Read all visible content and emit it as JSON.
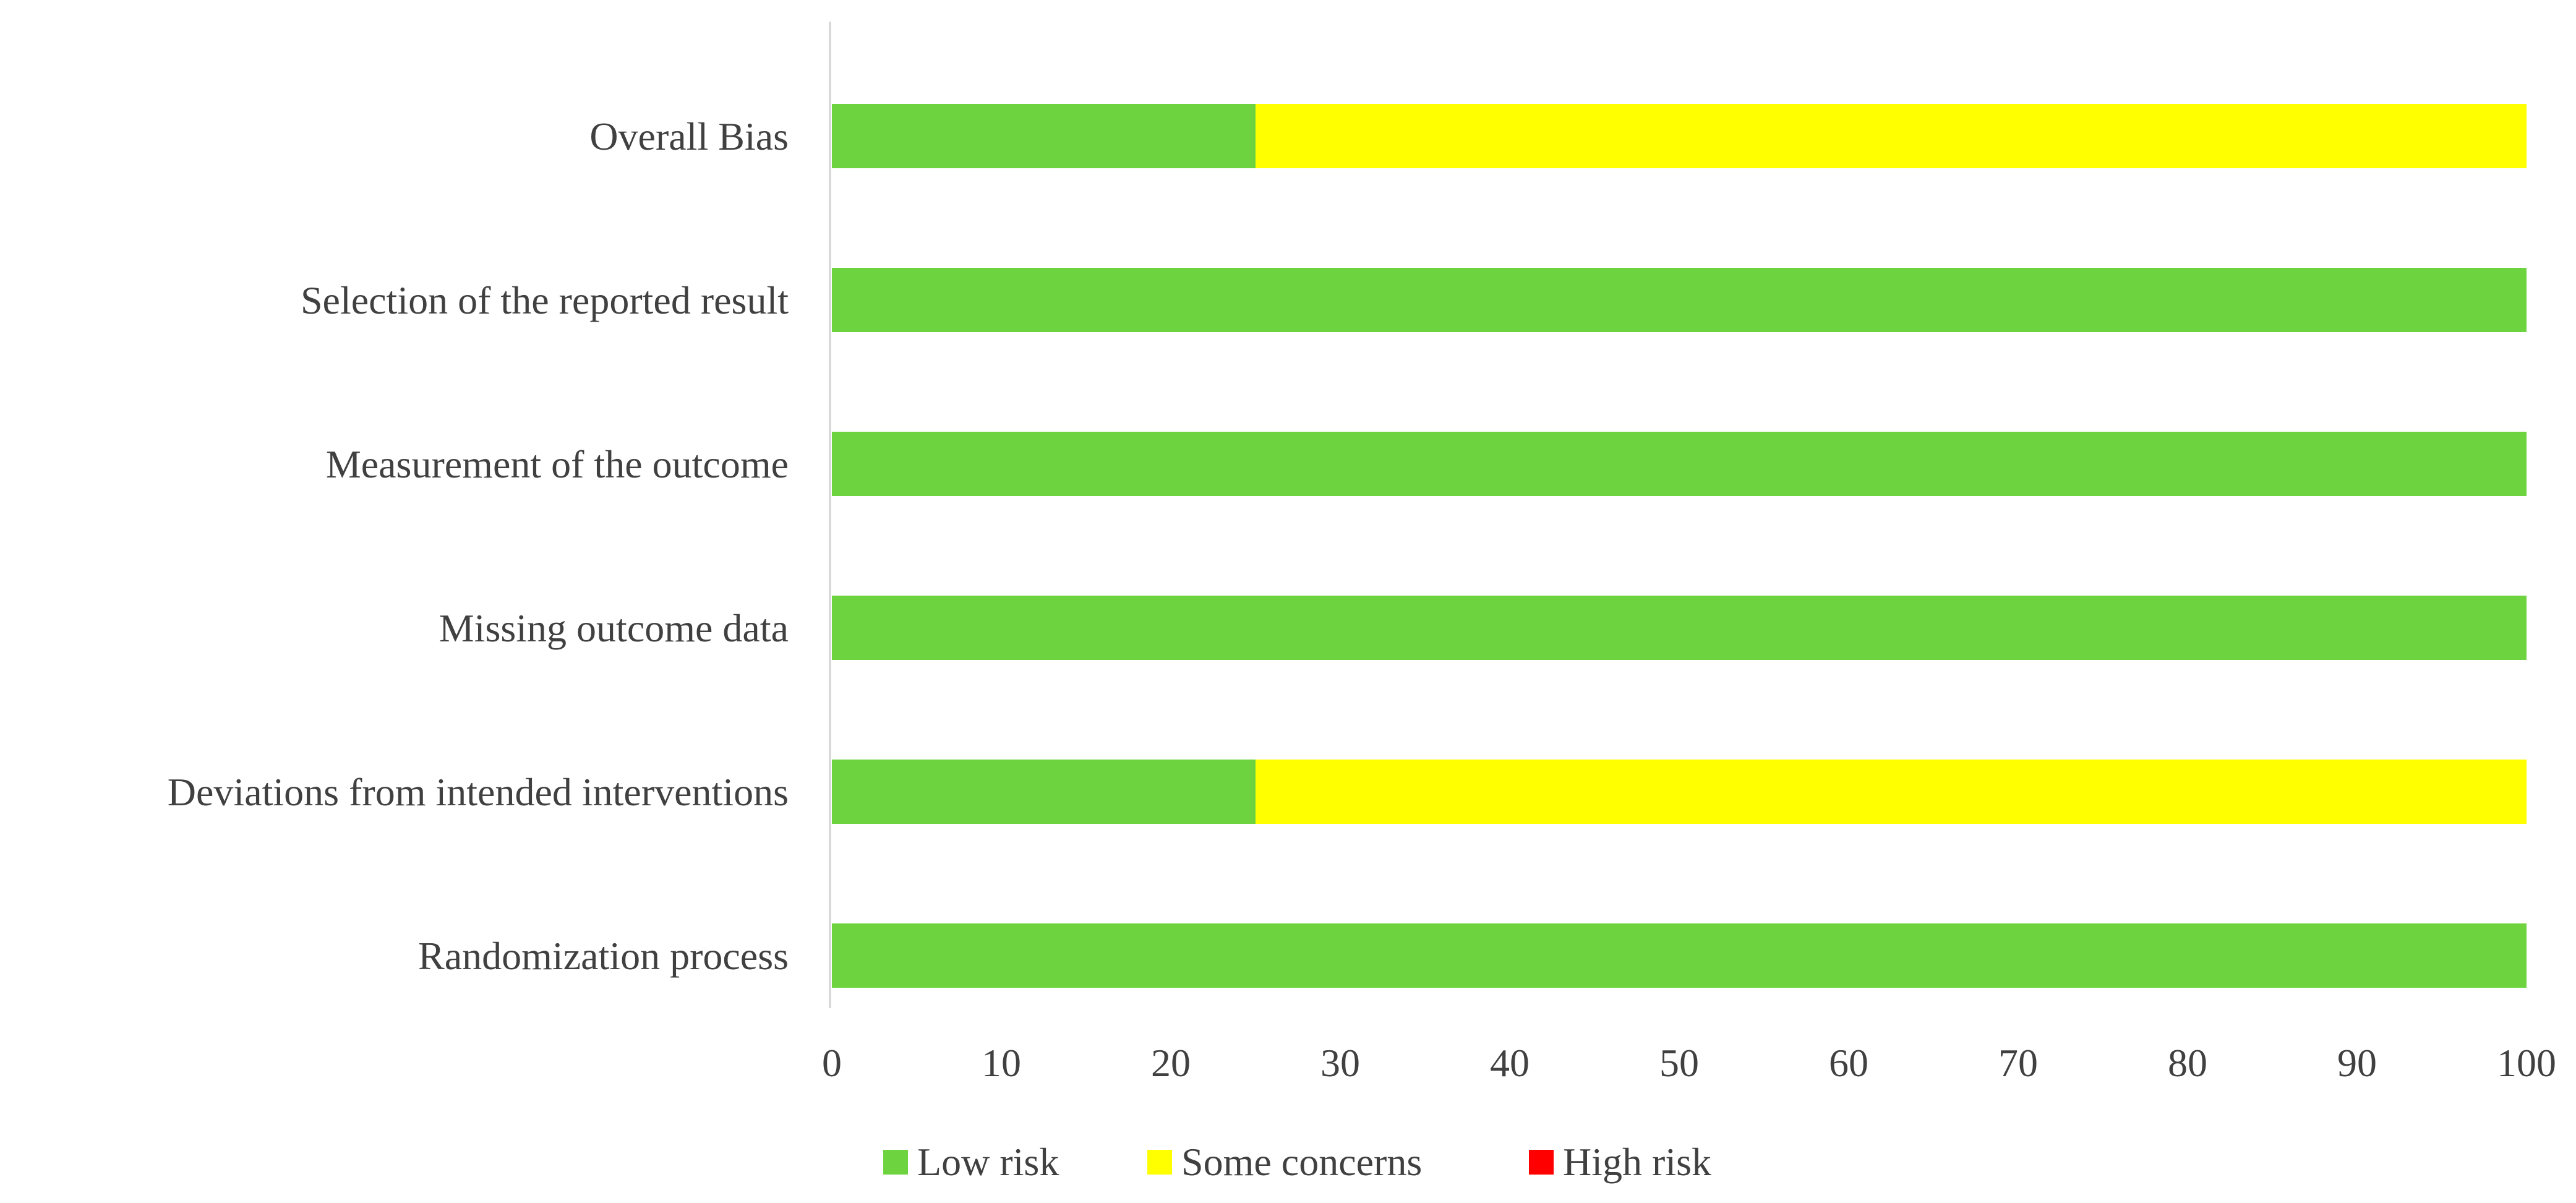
{
  "chart_data": {
    "type": "bar",
    "orientation": "horizontal",
    "stacked": true,
    "title": "",
    "xlabel": "",
    "ylabel": "",
    "xlim": [
      0,
      100
    ],
    "x_ticks": [
      "0",
      "10",
      "20",
      "30",
      "40",
      "50",
      "60",
      "70",
      "80",
      "90",
      "100"
    ],
    "grid": false,
    "legend_position": "bottom",
    "categories": [
      "Randomization process",
      "Deviations from intended interventions",
      "Missing outcome data",
      "Measurement of the outcome",
      "Selection of the reported result",
      "Overall Bias"
    ],
    "series": [
      {
        "name": "Low risk",
        "color": "#6dd43f",
        "values": [
          100,
          25,
          100,
          100,
          100,
          25
        ]
      },
      {
        "name": "Some concerns",
        "color": "#ffff00",
        "values": [
          0,
          75,
          0,
          0,
          0,
          75
        ]
      },
      {
        "name": "High risk",
        "color": "#ff0000",
        "values": [
          0,
          0,
          0,
          0,
          0,
          0
        ]
      }
    ]
  }
}
